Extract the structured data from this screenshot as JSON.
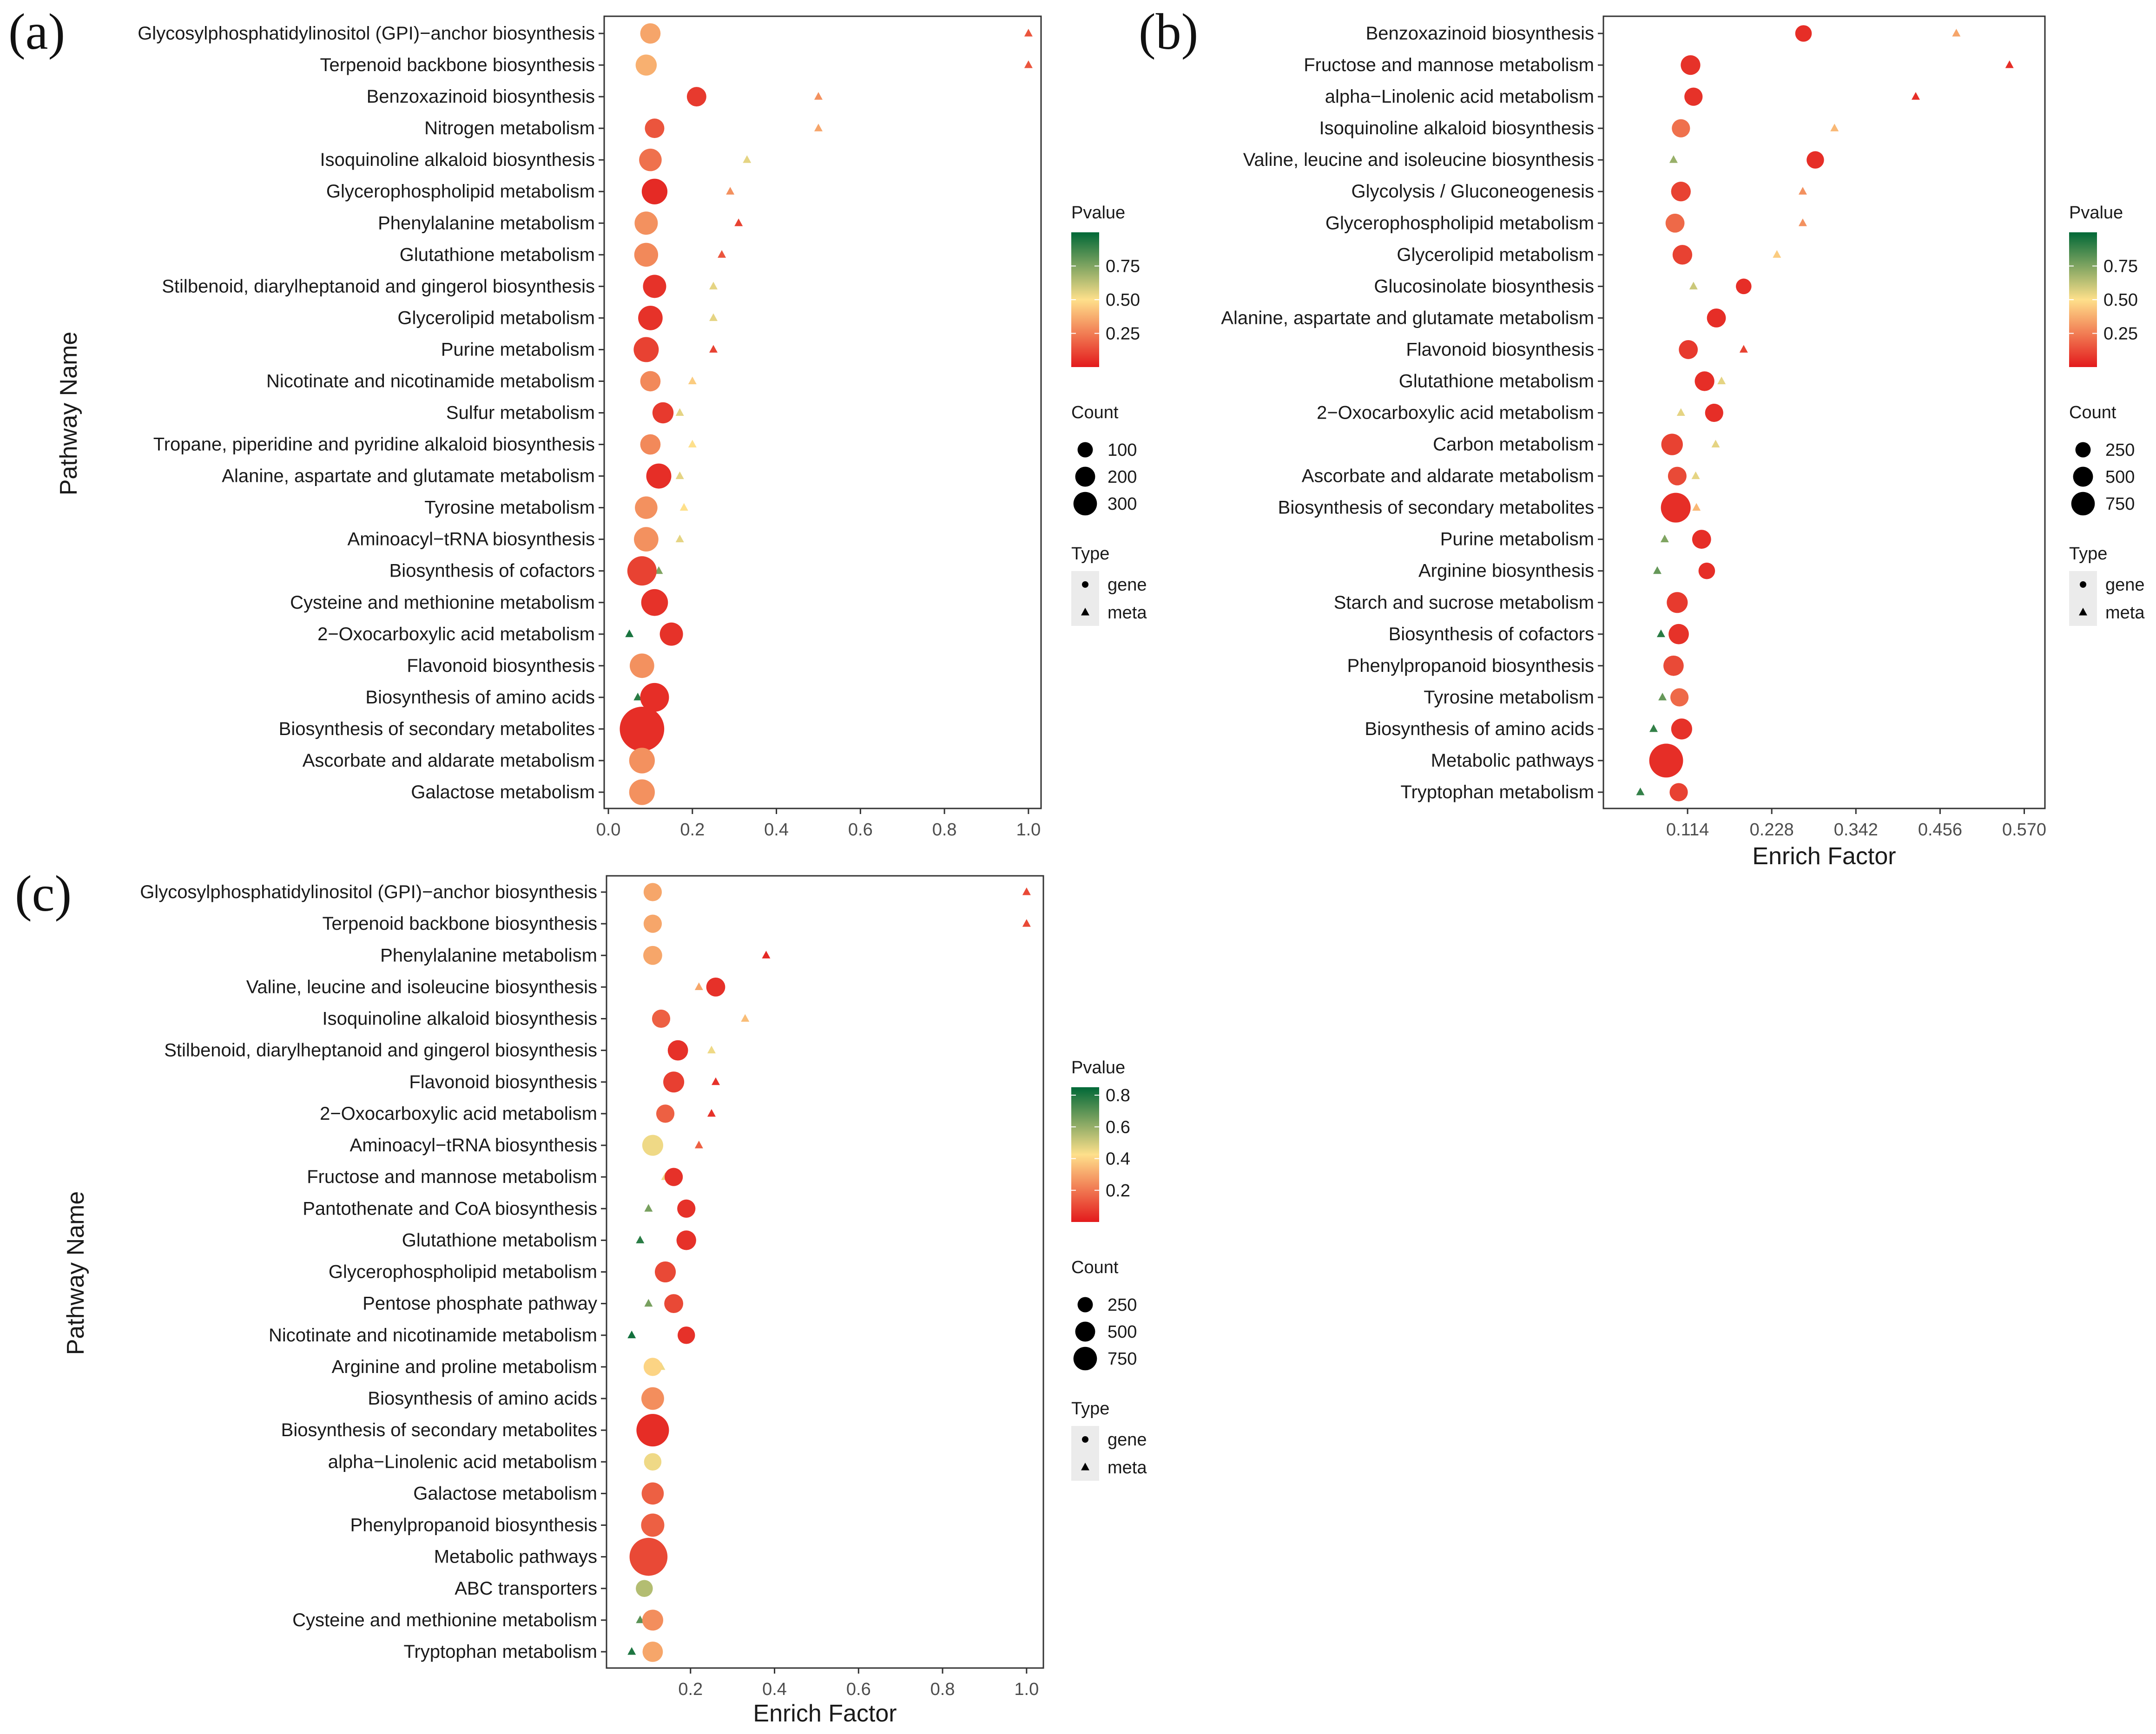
{
  "colors": {
    "pvalue_low": "#e31a1c",
    "pvalue_mid": "#fee08b",
    "pvalue_high": "#006837"
  },
  "panel_labels": [
    "(a)",
    "(b)",
    "(c)"
  ],
  "legend_titles": {
    "pvalue": "Pvalue",
    "count": "Count",
    "type": "Type"
  },
  "chart_data": [
    {
      "id": "a",
      "type": "scatter",
      "title": "",
      "xlabel": "",
      "ylabel": "Pathway Name",
      "xlim": [
        -0.01,
        1.03
      ],
      "xticks": [
        0.0,
        0.2,
        0.4,
        0.6,
        0.8,
        1.0
      ],
      "xtick_labels": [
        "0.0",
        "0.2",
        "0.4",
        "0.6",
        "0.8",
        "1.0"
      ],
      "pvalue_ticks": [
        0.25,
        0.5,
        0.75
      ],
      "pvalue_tick_labels": [
        "0.25",
        "0.50",
        "0.75"
      ],
      "pvalue_range": [
        0,
        1
      ],
      "count_legend": [
        100,
        200,
        300
      ],
      "count_max": 300,
      "type_legend": [
        "gene",
        "meta"
      ],
      "pathways": [
        "Glycosylphosphatidylinositol (GPI)−anchor biosynthesis",
        "Terpenoid backbone biosynthesis",
        "Benzoxazinoid biosynthesis",
        "Nitrogen metabolism",
        "Isoquinoline alkaloid biosynthesis",
        "Glycerophospholipid metabolism",
        "Phenylalanine metabolism",
        "Glutathione metabolism",
        "Stilbenoid, diarylheptanoid and gingerol biosynthesis",
        "Glycerolipid metabolism",
        "Purine metabolism",
        "Nicotinate and nicotinamide metabolism",
        "Sulfur metabolism",
        "Tropane, piperidine and pyridine alkaloid biosynthesis",
        "Alanine, aspartate and glutamate metabolism",
        "Tyrosine metabolism",
        "Aminoacyl−tRNA biosynthesis",
        "Biosynthesis of cofactors",
        "Cysteine and methionine metabolism",
        "2−Oxocarboxylic acid metabolism",
        "Flavonoid biosynthesis",
        "Biosynthesis of amino acids",
        "Biosynthesis of secondary metabolites",
        "Ascorbate and aldarate metabolism",
        "Galactose metabolism"
      ],
      "gene": [
        {
          "x": 0.1,
          "p": 0.35,
          "count": 40
        },
        {
          "x": 0.09,
          "p": 0.38,
          "count": 45
        },
        {
          "x": 0.21,
          "p": 0.08,
          "count": 35
        },
        {
          "x": 0.11,
          "p": 0.15,
          "count": 35
        },
        {
          "x": 0.1,
          "p": 0.22,
          "count": 55
        },
        {
          "x": 0.11,
          "p": 0.04,
          "count": 80
        },
        {
          "x": 0.09,
          "p": 0.3,
          "count": 60
        },
        {
          "x": 0.09,
          "p": 0.28,
          "count": 65
        },
        {
          "x": 0.11,
          "p": 0.06,
          "count": 60
        },
        {
          "x": 0.1,
          "p": 0.06,
          "count": 70
        },
        {
          "x": 0.09,
          "p": 0.1,
          "count": 75
        },
        {
          "x": 0.1,
          "p": 0.28,
          "count": 40
        },
        {
          "x": 0.13,
          "p": 0.08,
          "count": 45
        },
        {
          "x": 0.1,
          "p": 0.28,
          "count": 40
        },
        {
          "x": 0.12,
          "p": 0.05,
          "count": 75
        },
        {
          "x": 0.09,
          "p": 0.3,
          "count": 55
        },
        {
          "x": 0.09,
          "p": 0.3,
          "count": 70
        },
        {
          "x": 0.08,
          "p": 0.1,
          "count": 115
        },
        {
          "x": 0.11,
          "p": 0.06,
          "count": 90
        },
        {
          "x": 0.15,
          "p": 0.06,
          "count": 60
        },
        {
          "x": 0.08,
          "p": 0.3,
          "count": 70
        },
        {
          "x": 0.11,
          "p": 0.05,
          "count": 110
        },
        {
          "x": 0.08,
          "p": 0.05,
          "count": 330
        },
        {
          "x": 0.08,
          "p": 0.3,
          "count": 80
        },
        {
          "x": 0.08,
          "p": 0.3,
          "count": 80
        }
      ],
      "meta": [
        {
          "x": 1.0,
          "p": 0.15
        },
        {
          "x": 1.0,
          "p": 0.15
        },
        {
          "x": 0.5,
          "p": 0.3
        },
        {
          "x": 0.5,
          "p": 0.35
        },
        {
          "x": 0.33,
          "p": 0.55
        },
        {
          "x": 0.29,
          "p": 0.3
        },
        {
          "x": 0.31,
          "p": 0.1
        },
        {
          "x": 0.27,
          "p": 0.15
        },
        {
          "x": 0.25,
          "p": 0.55
        },
        {
          "x": 0.25,
          "p": 0.55
        },
        {
          "x": 0.25,
          "p": 0.1
        },
        {
          "x": 0.2,
          "p": 0.45
        },
        {
          "x": 0.17,
          "p": 0.55
        },
        {
          "x": 0.2,
          "p": 0.5
        },
        {
          "x": 0.17,
          "p": 0.55
        },
        {
          "x": 0.18,
          "p": 0.5
        },
        {
          "x": 0.17,
          "p": 0.55
        },
        {
          "x": 0.12,
          "p": 0.75
        },
        {
          "x": 0.09,
          "p": 0.8
        },
        {
          "x": 0.05,
          "p": 0.95
        },
        null,
        {
          "x": 0.07,
          "p": 0.92
        },
        null,
        {
          "x": 0.07,
          "p": 0.8
        },
        {
          "x": 0.06,
          "p": 0.85
        }
      ]
    },
    {
      "id": "b",
      "type": "scatter",
      "title": "",
      "xlabel": "Enrich Factor",
      "ylabel": "",
      "xlim": [
        0.0,
        0.598
      ],
      "xticks": [
        0.114,
        0.228,
        0.342,
        0.456,
        0.57
      ],
      "xtick_labels": [
        "0.114",
        "0.228",
        "0.342",
        "0.456",
        "0.570"
      ],
      "pvalue_ticks": [
        0.25,
        0.5,
        0.75
      ],
      "pvalue_tick_labels": [
        "0.25",
        "0.50",
        "0.75"
      ],
      "pvalue_range": [
        0,
        1
      ],
      "count_legend": [
        250,
        500,
        750
      ],
      "count_max": 750,
      "type_legend": [
        "gene",
        "meta"
      ],
      "pathways": [
        "Benzoxazinoid biosynthesis",
        "Fructose and mannose metabolism",
        "alpha−Linolenic acid metabolism",
        "Isoquinoline alkaloid biosynthesis",
        "Valine, leucine and isoleucine biosynthesis",
        "Glycolysis / Gluconeogenesis",
        "Glycerophospholipid metabolism",
        "Glycerolipid metabolism",
        "Glucosinolate biosynthesis",
        "Alanine, aspartate and glutamate metabolism",
        "Flavonoid biosynthesis",
        "Glutathione metabolism",
        "2−Oxocarboxylic acid metabolism",
        "Carbon metabolism",
        "Ascorbate and aldarate metabolism",
        "Biosynthesis of secondary metabolites",
        "Purine metabolism",
        "Arginine biosynthesis",
        "Starch and sucrose metabolism",
        "Biosynthesis of cofactors",
        "Phenylpropanoid biosynthesis",
        "Tyrosine metabolism",
        "Biosynthesis of amino acids",
        "Metabolic pathways",
        "Tryptophan metabolism"
      ],
      "gene": [
        {
          "x": 0.271,
          "p": 0.05,
          "count": 50
        },
        {
          "x": 0.118,
          "p": 0.06,
          "count": 90
        },
        {
          "x": 0.122,
          "p": 0.06,
          "count": 70
        },
        {
          "x": 0.105,
          "p": 0.22,
          "count": 70
        },
        {
          "x": 0.287,
          "p": 0.05,
          "count": 60
        },
        {
          "x": 0.105,
          "p": 0.1,
          "count": 90
        },
        {
          "x": 0.097,
          "p": 0.2,
          "count": 80
        },
        {
          "x": 0.107,
          "p": 0.1,
          "count": 90
        },
        {
          "x": 0.19,
          "p": 0.05,
          "count": 40
        },
        {
          "x": 0.153,
          "p": 0.05,
          "count": 80
        },
        {
          "x": 0.115,
          "p": 0.08,
          "count": 80
        },
        {
          "x": 0.137,
          "p": 0.05,
          "count": 90
        },
        {
          "x": 0.15,
          "p": 0.05,
          "count": 70
        },
        {
          "x": 0.093,
          "p": 0.1,
          "count": 120
        },
        {
          "x": 0.1,
          "p": 0.12,
          "count": 75
        },
        {
          "x": 0.098,
          "p": 0.05,
          "count": 300
        },
        {
          "x": 0.133,
          "p": 0.05,
          "count": 80
        },
        {
          "x": 0.14,
          "p": 0.05,
          "count": 50
        },
        {
          "x": 0.1,
          "p": 0.08,
          "count": 110
        },
        {
          "x": 0.102,
          "p": 0.06,
          "count": 100
        },
        {
          "x": 0.095,
          "p": 0.12,
          "count": 100
        },
        {
          "x": 0.103,
          "p": 0.2,
          "count": 70
        },
        {
          "x": 0.106,
          "p": 0.06,
          "count": 110
        },
        {
          "x": 0.085,
          "p": 0.05,
          "count": 420
        },
        {
          "x": 0.102,
          "p": 0.1,
          "count": 70
        }
      ],
      "meta": [
        {
          "x": 0.478,
          "p": 0.35
        },
        {
          "x": 0.55,
          "p": 0.05
        },
        {
          "x": 0.423,
          "p": 0.05
        },
        {
          "x": 0.313,
          "p": 0.4
        },
        {
          "x": 0.095,
          "p": 0.7
        },
        {
          "x": 0.27,
          "p": 0.3
        },
        {
          "x": 0.27,
          "p": 0.3
        },
        {
          "x": 0.235,
          "p": 0.45
        },
        {
          "x": 0.122,
          "p": 0.6
        },
        {
          "x": 0.152,
          "p": 0.5
        },
        {
          "x": 0.19,
          "p": 0.1
        },
        {
          "x": 0.16,
          "p": 0.55
        },
        {
          "x": 0.105,
          "p": 0.55
        },
        {
          "x": 0.152,
          "p": 0.55
        },
        {
          "x": 0.125,
          "p": 0.55
        },
        {
          "x": 0.126,
          "p": 0.4
        },
        {
          "x": 0.083,
          "p": 0.75
        },
        {
          "x": 0.073,
          "p": 0.8
        },
        null,
        {
          "x": 0.078,
          "p": 0.92
        },
        null,
        {
          "x": 0.08,
          "p": 0.8
        },
        {
          "x": 0.068,
          "p": 0.9
        },
        null,
        {
          "x": 0.05,
          "p": 0.9
        }
      ]
    },
    {
      "id": "c",
      "type": "scatter",
      "title": "",
      "xlabel": "Enrich Factor",
      "ylabel": "Pathway Name",
      "xlim": [
        0.0,
        1.04
      ],
      "xticks": [
        0.2,
        0.4,
        0.6,
        0.8,
        1.0
      ],
      "xtick_labels": [
        "0.2",
        "0.4",
        "0.6",
        "0.8",
        "1.0"
      ],
      "pvalue_ticks": [
        0.2,
        0.4,
        0.6,
        0.8
      ],
      "pvalue_tick_labels": [
        "0.2",
        "0.4",
        "0.6",
        "0.8"
      ],
      "pvalue_range": [
        0,
        0.85
      ],
      "count_legend": [
        250,
        500,
        750
      ],
      "count_max": 750,
      "type_legend": [
        "gene",
        "meta"
      ],
      "pathways": [
        "Glycosylphosphatidylinositol (GPI)−anchor biosynthesis",
        "Terpenoid backbone biosynthesis",
        "Phenylalanine metabolism",
        "Valine, leucine and isoleucine biosynthesis",
        "Isoquinoline alkaloid biosynthesis",
        "Stilbenoid, diarylheptanoid and gingerol biosynthesis",
        "Flavonoid biosynthesis",
        "2−Oxocarboxylic acid metabolism",
        "Aminoacyl−tRNA biosynthesis",
        "Fructose and mannose metabolism",
        "Pantothenate and CoA biosynthesis",
        "Glutathione metabolism",
        "Glycerophospholipid metabolism",
        "Pentose phosphate pathway",
        "Nicotinate and nicotinamide metabolism",
        "Arginine and proline metabolism",
        "Biosynthesis of amino acids",
        "Biosynthesis of secondary metabolites",
        "alpha−Linolenic acid metabolism",
        "Galactose metabolism",
        "Phenylpropanoid biosynthesis",
        "Metabolic pathways",
        "ABC transporters",
        "Cysteine and methionine metabolism",
        "Tryptophan metabolism"
      ],
      "gene": [
        {
          "x": 0.11,
          "p": 0.3,
          "count": 70
        },
        {
          "x": 0.11,
          "p": 0.3,
          "count": 70
        },
        {
          "x": 0.11,
          "p": 0.3,
          "count": 80
        },
        {
          "x": 0.26,
          "p": 0.05,
          "count": 80
        },
        {
          "x": 0.13,
          "p": 0.15,
          "count": 70
        },
        {
          "x": 0.17,
          "p": 0.05,
          "count": 100
        },
        {
          "x": 0.16,
          "p": 0.08,
          "count": 110
        },
        {
          "x": 0.14,
          "p": 0.15,
          "count": 70
        },
        {
          "x": 0.11,
          "p": 0.45,
          "count": 110
        },
        {
          "x": 0.16,
          "p": 0.05,
          "count": 70
        },
        {
          "x": 0.19,
          "p": 0.05,
          "count": 70
        },
        {
          "x": 0.19,
          "p": 0.05,
          "count": 90
        },
        {
          "x": 0.14,
          "p": 0.1,
          "count": 110
        },
        {
          "x": 0.16,
          "p": 0.1,
          "count": 80
        },
        {
          "x": 0.19,
          "p": 0.05,
          "count": 60
        },
        {
          "x": 0.11,
          "p": 0.4,
          "count": 70
        },
        {
          "x": 0.11,
          "p": 0.25,
          "count": 140
        },
        {
          "x": 0.11,
          "p": 0.04,
          "count": 380
        },
        {
          "x": 0.11,
          "p": 0.45,
          "count": 60
        },
        {
          "x": 0.11,
          "p": 0.15,
          "count": 130
        },
        {
          "x": 0.11,
          "p": 0.15,
          "count": 150
        },
        {
          "x": 0.1,
          "p": 0.1,
          "count": 560
        },
        {
          "x": 0.09,
          "p": 0.55,
          "count": 55
        },
        {
          "x": 0.11,
          "p": 0.25,
          "count": 110
        },
        {
          "x": 0.11,
          "p": 0.3,
          "count": 100
        }
      ],
      "meta": [
        {
          "x": 1.0,
          "p": 0.1
        },
        {
          "x": 1.0,
          "p": 0.1
        },
        {
          "x": 0.38,
          "p": 0.03
        },
        {
          "x": 0.22,
          "p": 0.3
        },
        {
          "x": 0.33,
          "p": 0.35
        },
        {
          "x": 0.25,
          "p": 0.45
        },
        {
          "x": 0.26,
          "p": 0.05
        },
        {
          "x": 0.25,
          "p": 0.05
        },
        {
          "x": 0.22,
          "p": 0.15
        },
        {
          "x": 0.14,
          "p": 0.45
        },
        {
          "x": 0.1,
          "p": 0.65
        },
        {
          "x": 0.08,
          "p": 0.78
        },
        null,
        {
          "x": 0.1,
          "p": 0.65
        },
        {
          "x": 0.06,
          "p": 0.82
        },
        {
          "x": 0.13,
          "p": 0.45
        },
        null,
        null,
        {
          "x": 0.1,
          "p": 0.55
        },
        {
          "x": 0.1,
          "p": 0.6
        },
        {
          "x": 0.1,
          "p": 0.6
        },
        null,
        {
          "x": 0.09,
          "p": 0.78
        },
        {
          "x": 0.08,
          "p": 0.7
        },
        {
          "x": 0.06,
          "p": 0.8
        }
      ]
    }
  ]
}
